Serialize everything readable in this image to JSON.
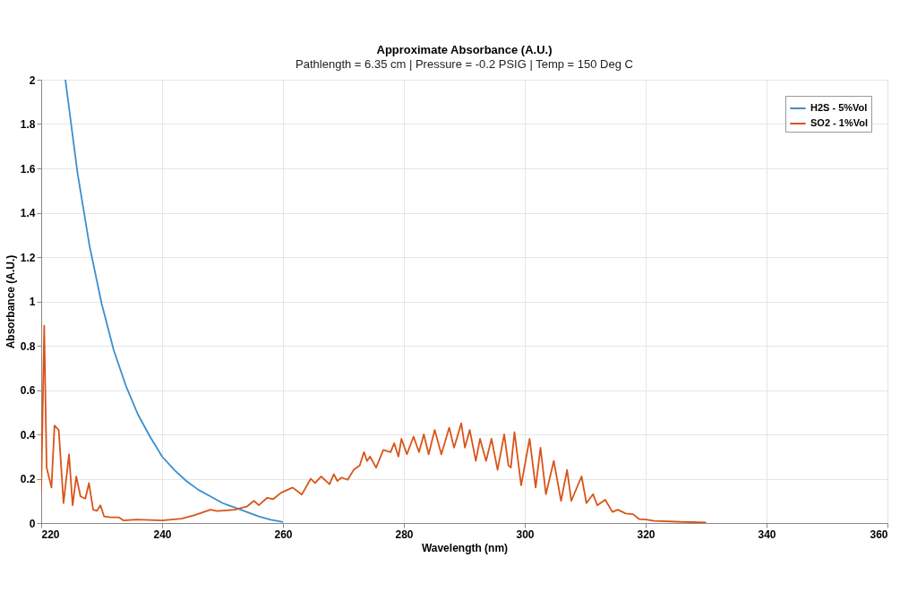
{
  "chart_data": {
    "type": "line",
    "title": "Approximate Absorbance (A.U.)",
    "subtitle": "Pathlength = 6.35 cm | Pressure = -0.2 PSIG | Temp = 150 Deg C",
    "xlabel": "Wavelength (nm)",
    "ylabel": "Absorbance (A.U.)",
    "xlim": [
      220,
      360
    ],
    "ylim": [
      0,
      2
    ],
    "xticks": [
      220,
      240,
      260,
      280,
      300,
      320,
      340,
      360
    ],
    "yticks": [
      0,
      0.2,
      0.4,
      0.6,
      0.8,
      1,
      1.2,
      1.4,
      1.6,
      1.8,
      2
    ],
    "grid": true,
    "legend": "top right",
    "line_style": "solid",
    "marker": "none",
    "series": [
      {
        "name": "H2S - 5%Vol",
        "color": "#3a8fd0",
        "x": [
          224,
          226,
          228,
          230,
          232,
          234,
          236,
          238,
          240,
          242,
          244,
          246,
          248,
          250,
          252,
          254,
          256,
          258,
          260
        ],
        "values": [
          2.0,
          1.58,
          1.25,
          0.99,
          0.78,
          0.62,
          0.49,
          0.39,
          0.3,
          0.24,
          0.19,
          0.15,
          0.12,
          0.09,
          0.07,
          0.05,
          0.03,
          0.015,
          0.005
        ]
      },
      {
        "name": "SO2 - 1%Vol",
        "color": "#d9541a",
        "x": [
          220,
          220.5,
          220.9,
          221.7,
          222.2,
          222.9,
          223.7,
          224.6,
          225.2,
          225.8,
          226.5,
          227.3,
          227.9,
          228.6,
          229.2,
          229.8,
          230.4,
          231.5,
          232.8,
          233.6,
          235.8,
          240,
          243.2,
          245.3,
          248,
          249.1,
          252,
          254,
          255.2,
          256,
          257.4,
          258.4,
          259.7,
          261.6,
          263.1,
          264.6,
          265.3,
          266.3,
          267.7,
          268.4,
          269,
          269.7,
          270.7,
          271.7,
          272.7,
          273.4,
          273.9,
          274.4,
          275.4,
          276.6,
          277.8,
          278.4,
          279.1,
          279.6,
          280.5,
          281.6,
          282.5,
          283.3,
          284.1,
          285.1,
          286.2,
          287.5,
          288.3,
          289.5,
          290.1,
          290.9,
          291.9,
          292.6,
          293.6,
          294.5,
          295.5,
          296.6,
          297.3,
          297.7,
          298.3,
          299.4,
          300.8,
          301.8,
          302.6,
          303.5,
          304.8,
          306,
          307,
          307.7,
          309.4,
          310.2,
          311.3,
          312,
          313.3,
          314.5,
          315.4,
          316.7,
          317.9,
          318.9,
          320.1,
          321.4,
          325,
          330
        ],
        "values": [
          0.14,
          0.89,
          0.25,
          0.16,
          0.44,
          0.42,
          0.09,
          0.31,
          0.08,
          0.21,
          0.12,
          0.11,
          0.18,
          0.06,
          0.055,
          0.08,
          0.03,
          0.026,
          0.026,
          0.012,
          0.016,
          0.012,
          0.02,
          0.035,
          0.06,
          0.054,
          0.06,
          0.074,
          0.1,
          0.08,
          0.114,
          0.108,
          0.137,
          0.16,
          0.128,
          0.2,
          0.18,
          0.21,
          0.175,
          0.22,
          0.19,
          0.205,
          0.195,
          0.24,
          0.26,
          0.32,
          0.28,
          0.3,
          0.25,
          0.33,
          0.32,
          0.36,
          0.3,
          0.38,
          0.31,
          0.39,
          0.32,
          0.4,
          0.31,
          0.42,
          0.31,
          0.43,
          0.34,
          0.45,
          0.34,
          0.42,
          0.28,
          0.38,
          0.28,
          0.38,
          0.24,
          0.4,
          0.26,
          0.25,
          0.41,
          0.17,
          0.38,
          0.16,
          0.34,
          0.13,
          0.28,
          0.1,
          0.24,
          0.1,
          0.21,
          0.09,
          0.13,
          0.08,
          0.105,
          0.05,
          0.06,
          0.043,
          0.04,
          0.018,
          0.016,
          0.01,
          0.006,
          0.002
        ]
      }
    ]
  }
}
